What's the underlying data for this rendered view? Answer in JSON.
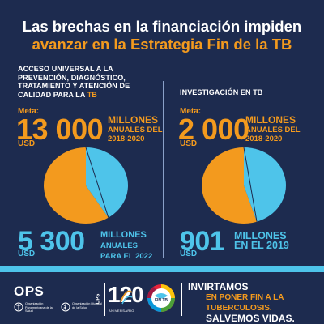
{
  "title": {
    "line1": "Las brechas en la financiación impiden",
    "line2": "avanzar en la Estrategia Fin de la TB"
  },
  "left": {
    "category": "ACCESO UNIVERSAL A LA PREVENCIÓN, DIAGNÓSTICO, TRATAMIENTO Y ATENCIÓN DE CALIDAD PARA LA",
    "category_tb": "TB",
    "meta_label": "Meta:",
    "target_value": "13 000",
    "target_unit": "USD",
    "target_desc_l1": "MILLONES",
    "target_desc_l2": "ANUALES DEL",
    "target_desc_l3": "2018-2020",
    "actual_value": "5 300",
    "actual_unit": "USD",
    "actual_desc_l1": "MILLONES",
    "actual_desc_l2": "ANUALES",
    "actual_desc_l3": "PARA EL 2022",
    "funded_fraction": 0.41
  },
  "right": {
    "category": "INVESTIGACIÓN EN TB",
    "meta_label": "Meta:",
    "target_value": "2 000",
    "target_unit": "USD",
    "target_desc_l1": "MILLONES",
    "target_desc_l2": "ANUALES DEL",
    "target_desc_l3": "2018-2020",
    "actual_value": "901",
    "actual_unit": "USD",
    "actual_desc_l1": "MILLONES",
    "actual_desc_l2": "EN EL 2019",
    "funded_fraction": 0.45
  },
  "colors": {
    "background": "#1d2b4f",
    "accent_orange": "#f39a1e",
    "accent_blue": "#4ec4ea",
    "pie_gap_orange": "#f39a1e",
    "pie_funded_blue": "#4ec4ea"
  },
  "footer": {
    "ops_logo": "OPS",
    "ops_sub1": "Organización Panamericana de la Salud",
    "ops_sub2": "Organización Mundial de la Salud",
    "anniv_number": "120",
    "anniv_side": "OPS",
    "anniv_label": "ANIVERSARIO",
    "finstb_logo": "FIN TB",
    "cta_line1": "INVIRTAMOS",
    "cta_line2": "EN PONER FIN A LA TUBERCULOSIS.",
    "cta_line3": "SALVEMOS VIDAS."
  }
}
